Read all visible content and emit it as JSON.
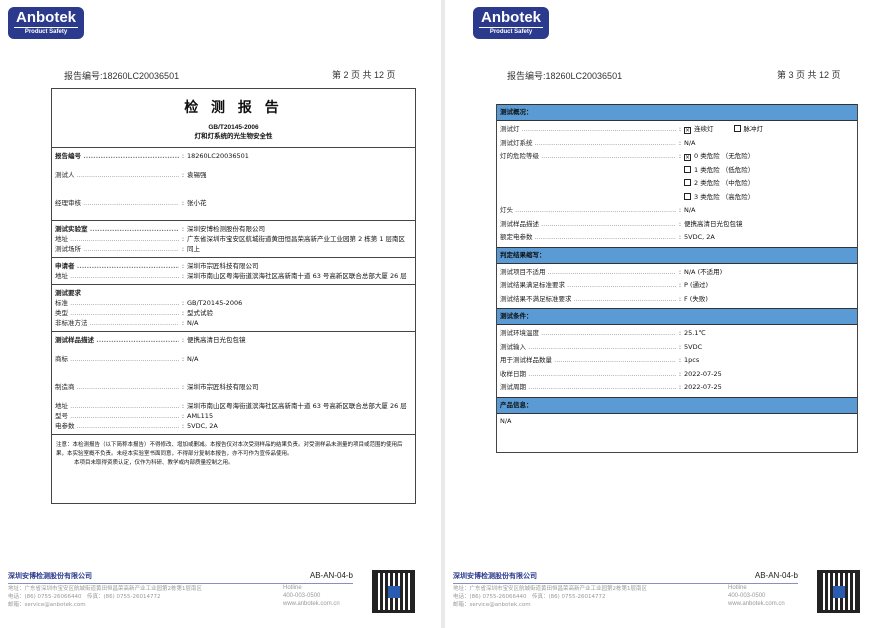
{
  "brand": {
    "name": "Anbotek",
    "tagline": "Product Safety"
  },
  "page2": {
    "report_no": "报告编号:18260LC20036501",
    "page": "第 2 页 共 12 页",
    "title": "检 测 报 告",
    "standard": "GB/T20145-2006",
    "subtitle": "灯和灯系统的光生物安全性",
    "sections": [
      [
        {
          "label": "报告编号",
          "value": "18260LC20036501",
          "bold": true
        },
        {
          "label": "测试人",
          "value": "袁锡强",
          "tall": true,
          "sig": "袁锡强"
        },
        {
          "label": "经理审核",
          "value": "张小花",
          "tall": true,
          "sig": "张小花"
        }
      ],
      [
        {
          "label": "测试实验室",
          "value": "深圳安博检测股份有限公司",
          "bold": true
        },
        {
          "label": "地址",
          "value": "广东省深圳市宝安区航城街道黄田恒昌荣高新产业工业园第 2 栋第 1 层南区"
        },
        {
          "label": "测试场所",
          "value": "同上"
        }
      ],
      [
        {
          "label": "申请者",
          "value": "深圳市宗匠科技有限公司",
          "bold": true
        },
        {
          "label": "地址",
          "value": "深圳市南山区粤海街道滨海社区高新南十道 63 号高新区联合总部大厦 26 层"
        }
      ],
      [
        {
          "label": "测试要求",
          "value": "",
          "bold": true,
          "nocolon": true
        },
        {
          "label": "标准",
          "value": "GB/T20145-2006"
        },
        {
          "label": "类型",
          "value": "型式试验"
        },
        {
          "label": "非标准方法",
          "value": "N/A"
        }
      ],
      [
        {
          "label": "测试样品描述",
          "value": "便携高清日光包包镜",
          "bold": true
        },
        {
          "label": "商标",
          "value": "N/A",
          "tall": true
        },
        {
          "label": "制造商",
          "value": "深圳市宗匠科技有限公司",
          "tall": true
        },
        {
          "label": "地址",
          "value": "深圳市南山区粤海街道滨海社区高新南十道 63 号高新区联合总部大厦 26 层"
        },
        {
          "label": "型号",
          "value": "AML115"
        },
        {
          "label": "电参数",
          "value": "5VDC, 2A"
        }
      ]
    ],
    "note": "注意：本检测报告（以下简称本报告）不得修改、增加或删减。本报告仅对本次受测样品的结果负责。对受测样品未测量的项目或范围的使用后果，本实验室概不负责。未经本实验室书面同意，不得部分复制本报告，亦不可作为宣传品使用。",
    "note2": "本项目未取得资质认定，仅作为科研、教学或内部质量控制之用。"
  },
  "page3": {
    "report_no": "报告编号:18260LC20036501",
    "page": "第 3 页 共 12 页",
    "sections": [
      {
        "header": "测试概况：",
        "rows": [
          {
            "label": "测试灯",
            "value": "",
            "checks": [
              {
                "text": "连续灯",
                "checked": true
              },
              {
                "text": "脉冲灯",
                "checked": false
              }
            ]
          },
          {
            "label": "测试灯系统",
            "value": "N/A"
          },
          {
            "label": "灯的危险等级",
            "value": "",
            "checks": [
              {
                "text": "0 类危险 （无危险）",
                "checked": true
              }
            ]
          },
          {
            "label": "",
            "value": "",
            "checks": [
              {
                "text": "1 类危险 （低危险）",
                "checked": false
              }
            ]
          },
          {
            "label": "",
            "value": "",
            "checks": [
              {
                "text": "2 类危险 （中危险）",
                "checked": false
              }
            ]
          },
          {
            "label": "",
            "value": "",
            "checks": [
              {
                "text": "3 类危险 （高危险）",
                "checked": false
              }
            ]
          },
          {
            "label": "灯头",
            "value": "N/A"
          },
          {
            "label": "测试样品描述",
            "value": "便携高清日光包包镜"
          },
          {
            "label": "额定电参数",
            "value": "5VDC, 2A"
          }
        ]
      },
      {
        "header": "判定结果缩写：",
        "rows": [
          {
            "label": "测试项目不适用",
            "value": "N/A (不适用)"
          },
          {
            "label": "测试结果满足标准要求",
            "value": "P (通过)"
          },
          {
            "label": "测试结果不满足标准要求",
            "value": "F (失败)"
          }
        ]
      },
      {
        "header": "测试条件：",
        "rows": [
          {
            "label": "测试环境温度",
            "value": "25.1℃"
          },
          {
            "label": "测试输入",
            "value": "5VDC"
          },
          {
            "label": "用于测试样品数量",
            "value": "1pcs"
          },
          {
            "label": "收样日期",
            "value": "2022-07-25"
          },
          {
            "label": "测试周期",
            "value": "2022-07-25"
          }
        ]
      },
      {
        "header": "产品信息：",
        "text": "N/A"
      }
    ]
  },
  "footer": {
    "company": "深圳安博检测股份有限公司",
    "code": "AB-AN-04-b",
    "address": "地址：广东省深圳市宝安区航城街道黄田恒昌荣高新产业工业园第2栋第1层南区",
    "phone": "电话：(86) 0755-26066440　传真：(86) 0755-26014772",
    "email": "邮箱：service@anbotek.com",
    "hotline_label": "Hotline",
    "hotline": "400-003-0500",
    "website": "www.anbotek.com.cn"
  },
  "colors": {
    "header_blue": "#5b9bd5",
    "brand_navy": "#2b3a8c"
  }
}
